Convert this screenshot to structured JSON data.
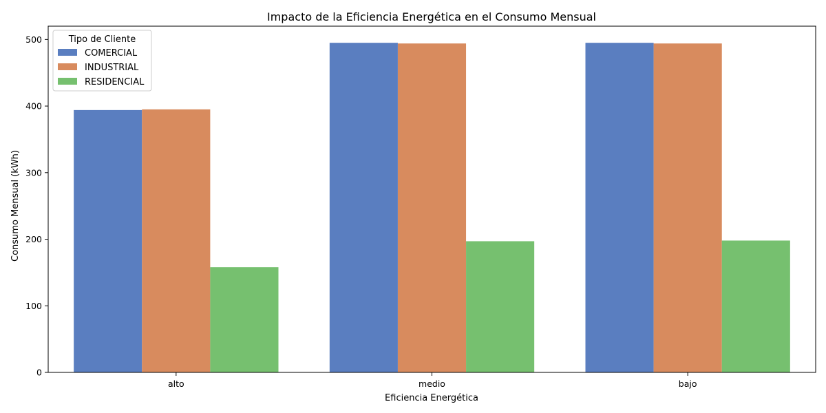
{
  "chart_data": {
    "type": "bar",
    "title": "Impacto de la Eficiencia Energética en el Consumo Mensual",
    "xlabel": "Eficiencia Energética",
    "ylabel": "Consumo Mensual (kWh)",
    "categories": [
      "alto",
      "medio",
      "bajo"
    ],
    "series": [
      {
        "name": "COMERCIAL",
        "color": "#5a7ec0",
        "values": [
          394,
          495,
          495
        ]
      },
      {
        "name": "INDUSTRIAL",
        "color": "#d88b5e",
        "values": [
          395,
          494,
          494
        ]
      },
      {
        "name": "RESIDENCIAL",
        "color": "#76c06f",
        "values": [
          158,
          197,
          198
        ]
      }
    ],
    "ylim": [
      0,
      520
    ],
    "yticks": [
      0,
      100,
      200,
      300,
      400,
      500
    ],
    "grid": false,
    "legend": {
      "title": "Tipo de Cliente",
      "placement": "top-left"
    }
  }
}
